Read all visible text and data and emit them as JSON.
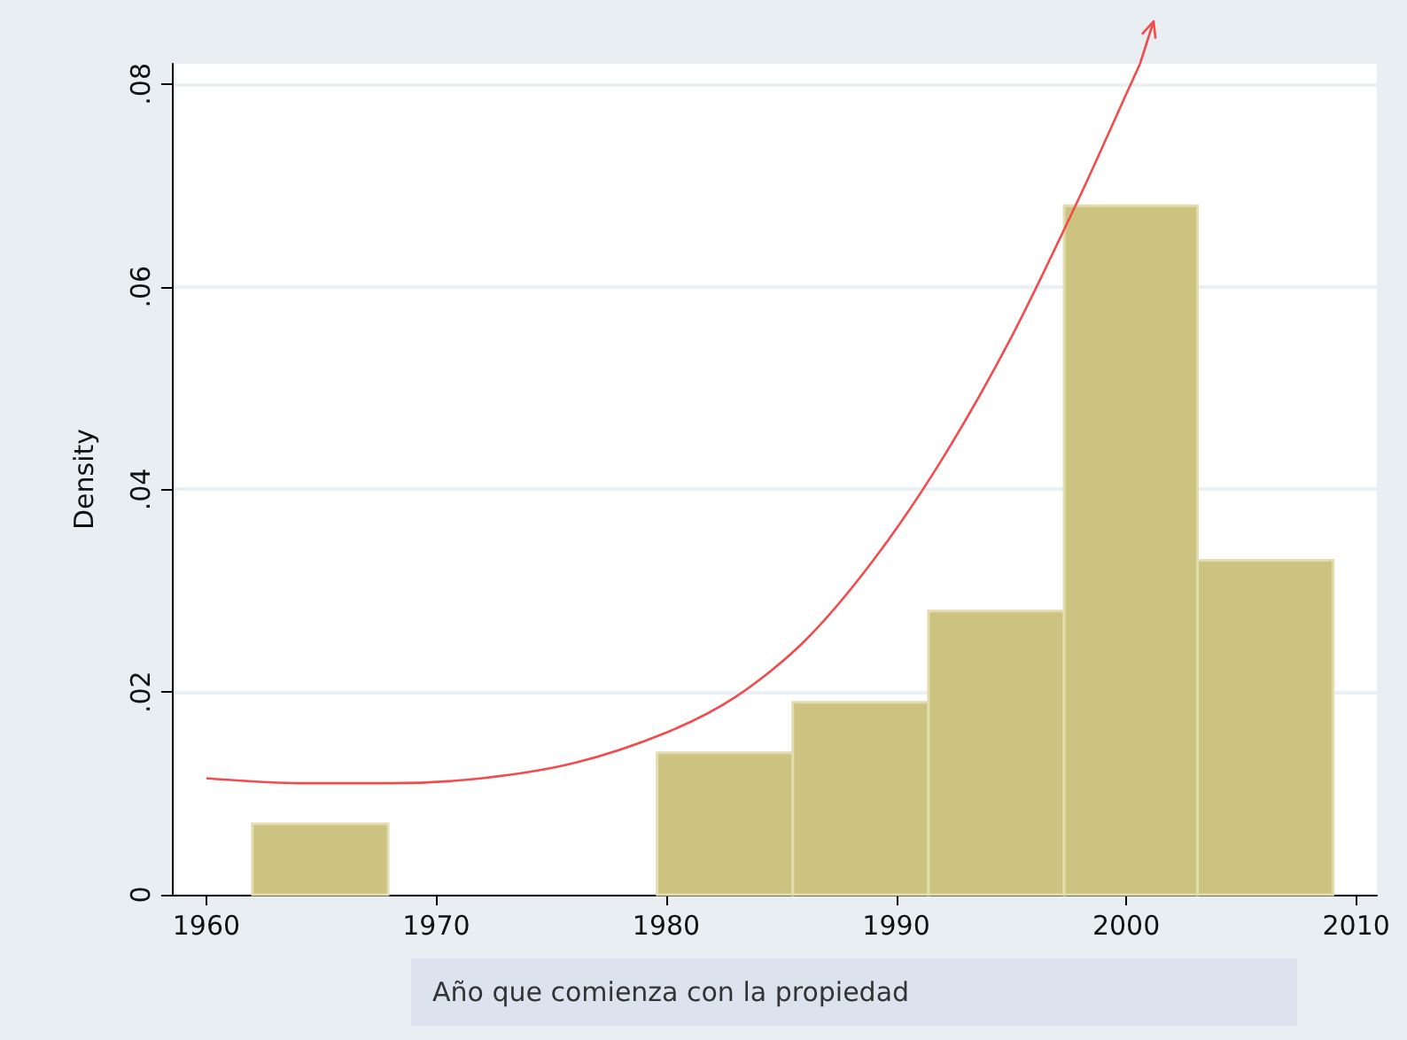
{
  "chart_data": {
    "type": "histogram",
    "xlabel": "Año que comienza con la propiedad",
    "ylabel": "Density",
    "bins": [
      1962,
      1967.9,
      1979.6,
      1985.5,
      1991.4,
      1997.3,
      2003.1,
      2009
    ],
    "values": [
      0.007,
      0,
      0.014,
      0.019,
      0.028,
      0.068,
      0.033
    ],
    "color": "#cbc37f",
    "series": [
      {
        "type": "line",
        "color": "#f24b4b",
        "x": [
          1960,
          1964,
          1968,
          1972,
          1976,
          1980,
          1983,
          1986,
          1989,
          1992,
          1995,
          1998,
          2000,
          2000.6
        ],
        "values": [
          0.0115,
          0.011,
          0.011,
          0.0115,
          0.013,
          0.016,
          0.0195,
          0.025,
          0.033,
          0.043,
          0.055,
          0.069,
          0.079,
          0.082
        ]
      }
    ],
    "marker": "none",
    "xlim": [
      1958.5,
      2010.9
    ],
    "xticks": [
      1960,
      1970,
      1980,
      1990,
      2000,
      2010
    ],
    "ylim": [
      0,
      0.082
    ],
    "yticks": [
      {
        "value": 0,
        "label": "0"
      },
      {
        "value": 0.02,
        "label": ".02"
      },
      {
        "value": 0.04,
        "label": ".04"
      },
      {
        "value": 0.06,
        "label": ".06"
      },
      {
        "value": 0.08,
        "label": ".08"
      }
    ],
    "grid": "y"
  }
}
